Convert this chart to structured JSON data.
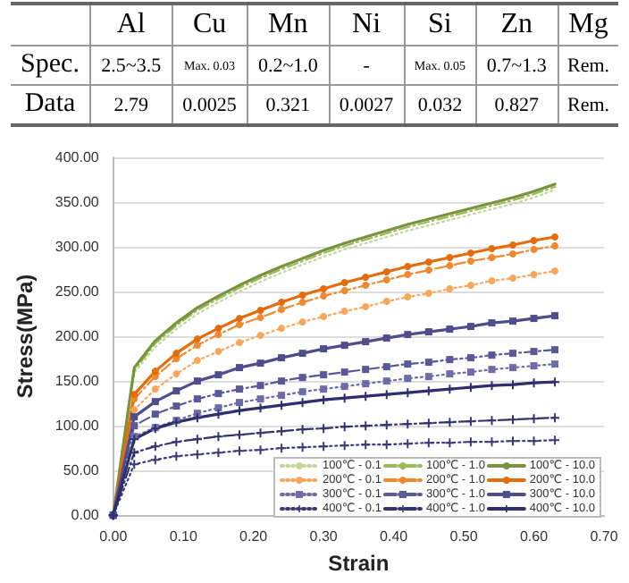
{
  "chart_data": [
    {
      "type": "other",
      "categories": [
        "Al",
        "Cu",
        "Mn",
        "Ni",
        "Si",
        "Zn",
        "Mg"
      ],
      "y_categories": [
        "Spec.",
        "Data"
      ],
      "cell_labels": [
        [
          "2.5~3.5",
          "Max. 0.03",
          "0.2~1.0",
          "-",
          "Max. 0.05",
          "0.7~1.3",
          "Rem."
        ],
        [
          "2.79",
          "0.0025",
          "0.321",
          "0.0027",
          "0.032",
          "0.827",
          "Rem."
        ]
      ]
    },
    {
      "type": "line",
      "xlabel": "Strain",
      "ylabel": "Stress(MPa)",
      "x": [
        0,
        0.03,
        0.06,
        0.09,
        0.12,
        0.15,
        0.18,
        0.21,
        0.24,
        0.27,
        0.3,
        0.33,
        0.36,
        0.39,
        0.42,
        0.45,
        0.48,
        0.51,
        0.54,
        0.57,
        0.6,
        0.63
      ],
      "xlim": [
        0,
        0.7
      ],
      "xticks": [
        {
          "value": 0,
          "label": "0.00"
        },
        {
          "value": 0.1,
          "label": "0.10"
        },
        {
          "value": 0.2,
          "label": "0.20"
        },
        {
          "value": 0.3,
          "label": "0.30"
        },
        {
          "value": 0.4,
          "label": "0.40"
        },
        {
          "value": 0.5,
          "label": "0.50"
        },
        {
          "value": 0.6,
          "label": "0.60"
        },
        {
          "value": 0.7,
          "label": "0.70"
        }
      ],
      "ylim": [
        0,
        400
      ],
      "yticks": [
        {
          "value": 0,
          "label": "0.00"
        },
        {
          "value": 50,
          "label": "50.00"
        },
        {
          "value": 100,
          "label": "100.00"
        },
        {
          "value": 150,
          "label": "150.00"
        },
        {
          "value": 200,
          "label": "200.00"
        },
        {
          "value": 250,
          "label": "250.00"
        },
        {
          "value": 300,
          "label": "300.00"
        },
        {
          "value": 350,
          "label": "350.00"
        },
        {
          "value": 400,
          "label": "400.00"
        }
      ],
      "grid": "y",
      "legend": "bottom right",
      "series": [
        {
          "name": "100℃ - 0.1",
          "color": "#c3d69b",
          "marker": "none",
          "line_style": "dotted",
          "values": [
            0,
            159,
            188,
            208,
            225,
            238,
            250,
            261,
            271,
            280,
            289,
            297,
            304,
            311,
            318,
            324,
            330,
            336,
            342,
            348,
            355,
            364
          ]
        },
        {
          "name": "100℃ - 1.0",
          "color": "#9bbb59",
          "marker": "none",
          "line_style": "dashed",
          "values": [
            0,
            162,
            192,
            212,
            229,
            242,
            254,
            265,
            275,
            284,
            293,
            301,
            308,
            315,
            322,
            328,
            334,
            340,
            346,
            352,
            359,
            367
          ]
        },
        {
          "name": "100℃ - 10.0",
          "color": "#77933c",
          "marker": "none",
          "line_style": "solid",
          "values": [
            0,
            165,
            195,
            215,
            232,
            245,
            257,
            268,
            278,
            287,
            296,
            304,
            311,
            318,
            325,
            331,
            337,
            343,
            349,
            355,
            362,
            370
          ]
        },
        {
          "name": "200℃ - 0.1",
          "color": "#f9a55a",
          "marker": "circle",
          "line_style": "dotted",
          "values": [
            0,
            118,
            141,
            158,
            173,
            183,
            193,
            201,
            209,
            216,
            222,
            228,
            233,
            239,
            244,
            248,
            253,
            257,
            262,
            265,
            269,
            273
          ]
        },
        {
          "name": "200℃ - 1.0",
          "color": "#f0882e",
          "marker": "circle",
          "line_style": "dashed",
          "values": [
            0,
            130,
            155,
            175,
            190,
            202,
            213,
            221,
            230,
            238,
            245,
            251,
            257,
            263,
            269,
            274,
            279,
            284,
            288,
            292,
            297,
            301
          ]
        },
        {
          "name": "200℃ - 10.0",
          "color": "#e46c0a",
          "marker": "circle",
          "line_style": "solid",
          "values": [
            0,
            135,
            161,
            181,
            197,
            209,
            220,
            229,
            238,
            246,
            253,
            260,
            266,
            272,
            278,
            283,
            288,
            293,
            298,
            302,
            307,
            311
          ]
        },
        {
          "name": "300℃ - 0.1",
          "color": "#6e6ca8",
          "marker": "square",
          "line_style": "dotted",
          "values": [
            0,
            88,
            98,
            106,
            114,
            120,
            126,
            130,
            134,
            138,
            141,
            144,
            147,
            150,
            153,
            155,
            158,
            160,
            163,
            165,
            167,
            169
          ]
        },
        {
          "name": "300℃ - 1.0",
          "color": "#5a5896",
          "marker": "square",
          "line_style": "dashed",
          "values": [
            0,
            100,
            113,
            122,
            130,
            136,
            141,
            145,
            150,
            154,
            157,
            160,
            163,
            166,
            169,
            171,
            174,
            176,
            179,
            181,
            183,
            185
          ]
        },
        {
          "name": "300℃ - 10.0",
          "color": "#4f4d8c",
          "marker": "square",
          "line_style": "solid",
          "values": [
            0,
            110,
            127,
            139,
            150,
            157,
            165,
            170,
            176,
            181,
            186,
            190,
            194,
            198,
            202,
            205,
            208,
            211,
            215,
            217,
            220,
            223
          ]
        },
        {
          "name": "400℃ - 0.1",
          "color": "#3a3b78",
          "marker": "cross",
          "line_style": "dotted",
          "values": [
            0,
            57,
            62,
            66,
            68,
            70,
            72,
            73,
            75,
            76,
            77,
            78,
            79,
            79,
            80,
            81,
            81,
            82,
            82,
            83,
            83,
            84
          ]
        },
        {
          "name": "400℃ - 1.0",
          "color": "#33346f",
          "marker": "cross",
          "line_style": "dashed",
          "values": [
            0,
            70,
            77,
            82,
            85,
            88,
            90,
            92,
            94,
            96,
            97,
            99,
            100,
            101,
            102,
            103,
            104,
            105,
            106,
            107,
            108,
            109
          ]
        },
        {
          "name": "400℃ - 10.0",
          "color": "#2e2f6e",
          "marker": "cross",
          "line_style": "solid",
          "values": [
            0,
            85,
            97,
            104,
            109,
            113,
            117,
            120,
            123,
            126,
            129,
            131,
            133,
            135,
            137,
            139,
            141,
            143,
            145,
            146,
            148,
            149
          ]
        }
      ]
    }
  ]
}
